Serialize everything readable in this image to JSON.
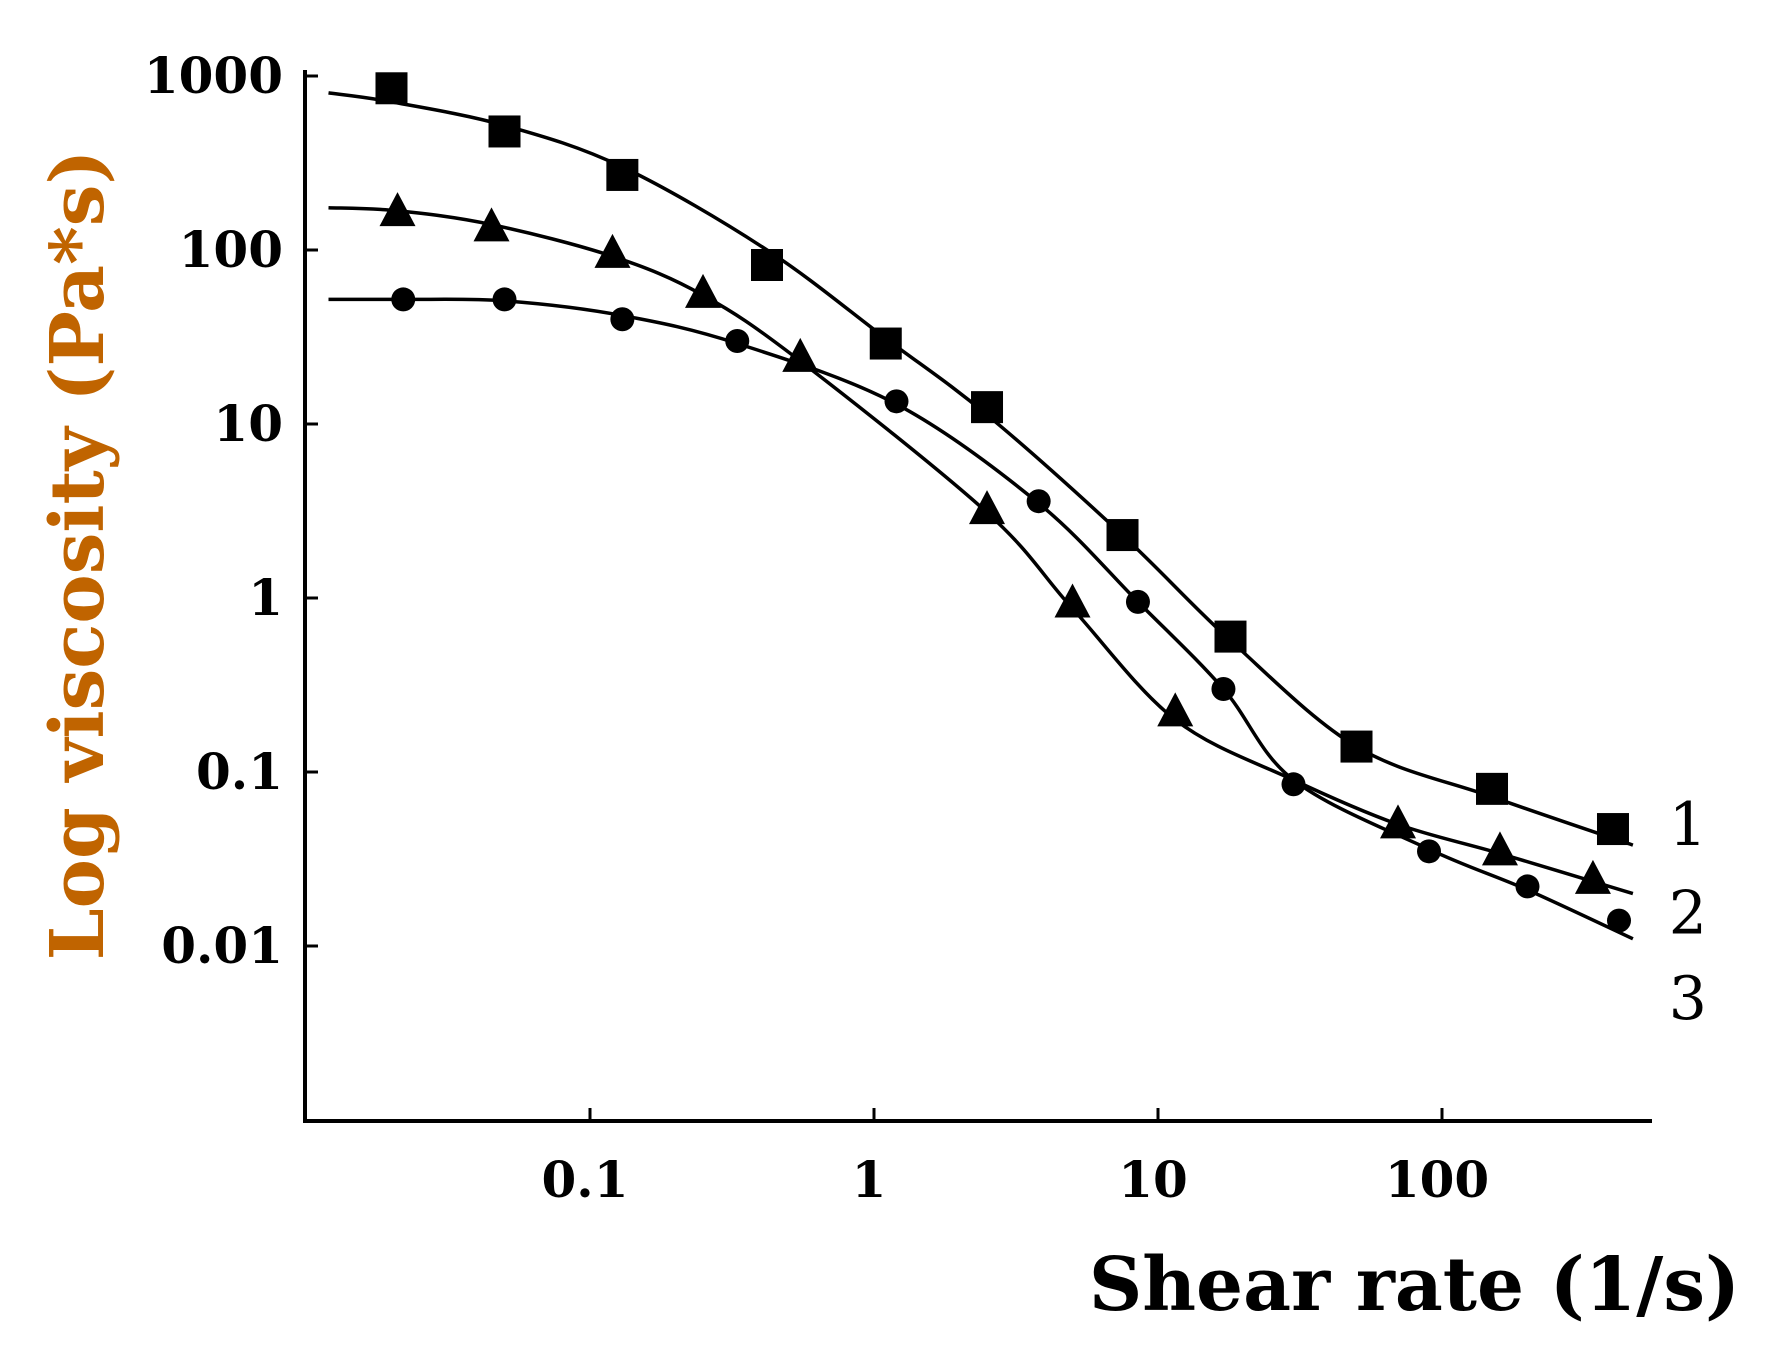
{
  "chart_data": {
    "type": "line",
    "xscale": "log",
    "yscale": "log",
    "xlabel": "Shear rate (1/s)",
    "ylabel": "Log viscosity (Pa*s)",
    "xlim": [
      0.014,
      500
    ],
    "ylim": [
      0.0007,
      1200
    ],
    "x_ticks": [
      0.1,
      1,
      10,
      100
    ],
    "x_tick_labels": [
      "0.1",
      "1",
      "10",
      "100"
    ],
    "y_ticks": [
      0.01,
      0.1,
      1,
      10,
      100,
      1000
    ],
    "y_tick_labels": [
      "0.01",
      "0.1",
      "1",
      "10",
      "100",
      "1000"
    ],
    "colors": {
      "xlabel": "#000000",
      "ylabel": "#c06400",
      "lines": "#000000"
    },
    "series": [
      {
        "name": "1",
        "marker": "square",
        "points": [
          [
            0.02,
            850
          ],
          [
            0.05,
            480
          ],
          [
            0.13,
            270
          ],
          [
            0.42,
            82
          ],
          [
            1.1,
            29
          ],
          [
            2.5,
            12.5
          ],
          [
            7.5,
            2.3
          ],
          [
            18,
            0.6
          ],
          [
            50,
            0.14
          ],
          [
            150,
            0.08
          ],
          [
            400,
            0.047
          ]
        ],
        "curve": [
          [
            0.012,
            800
          ],
          [
            0.02,
            710
          ],
          [
            0.05,
            520
          ],
          [
            0.13,
            300
          ],
          [
            0.42,
            100
          ],
          [
            1.1,
            31
          ],
          [
            2.5,
            11.3
          ],
          [
            7.5,
            2.3
          ],
          [
            18,
            0.57
          ],
          [
            50,
            0.14
          ],
          [
            150,
            0.072
          ],
          [
            470,
            0.038
          ]
        ]
      },
      {
        "name": "2",
        "marker": "triangle",
        "points": [
          [
            0.021,
            165
          ],
          [
            0.045,
            135
          ],
          [
            0.12,
            95
          ],
          [
            0.25,
            56
          ],
          [
            0.55,
            24
          ],
          [
            2.5,
            3.2
          ],
          [
            5,
            0.93
          ],
          [
            11.5,
            0.22
          ],
          [
            70,
            0.05
          ],
          [
            160,
            0.035
          ],
          [
            340,
            0.024
          ]
        ],
        "curve": [
          [
            0.012,
            175
          ],
          [
            0.021,
            168
          ],
          [
            0.045,
            140
          ],
          [
            0.12,
            92
          ],
          [
            0.25,
            55
          ],
          [
            0.55,
            23
          ],
          [
            2.5,
            3.1
          ],
          [
            5,
            0.87
          ],
          [
            11.5,
            0.2
          ],
          [
            30,
            0.09
          ],
          [
            70,
            0.05
          ],
          [
            160,
            0.034
          ],
          [
            470,
            0.02
          ]
        ]
      },
      {
        "name": "3",
        "marker": "diamond",
        "points": [
          [
            0.022,
            52
          ],
          [
            0.05,
            52
          ],
          [
            0.13,
            40
          ],
          [
            0.33,
            30
          ],
          [
            1.2,
            13.5
          ],
          [
            3.8,
            3.6
          ],
          [
            8.5,
            0.95
          ],
          [
            17,
            0.3
          ],
          [
            30,
            0.085
          ],
          [
            90,
            0.035
          ],
          [
            200,
            0.022
          ],
          [
            420,
            0.014
          ]
        ],
        "curve": [
          [
            0.012,
            52
          ],
          [
            0.022,
            52
          ],
          [
            0.05,
            51
          ],
          [
            0.13,
            42
          ],
          [
            0.33,
            29
          ],
          [
            1.2,
            13
          ],
          [
            3.8,
            3.5
          ],
          [
            8.5,
            0.95
          ],
          [
            17,
            0.3
          ],
          [
            30,
            0.09
          ],
          [
            90,
            0.036
          ],
          [
            200,
            0.021
          ],
          [
            470,
            0.011
          ]
        ]
      }
    ]
  }
}
